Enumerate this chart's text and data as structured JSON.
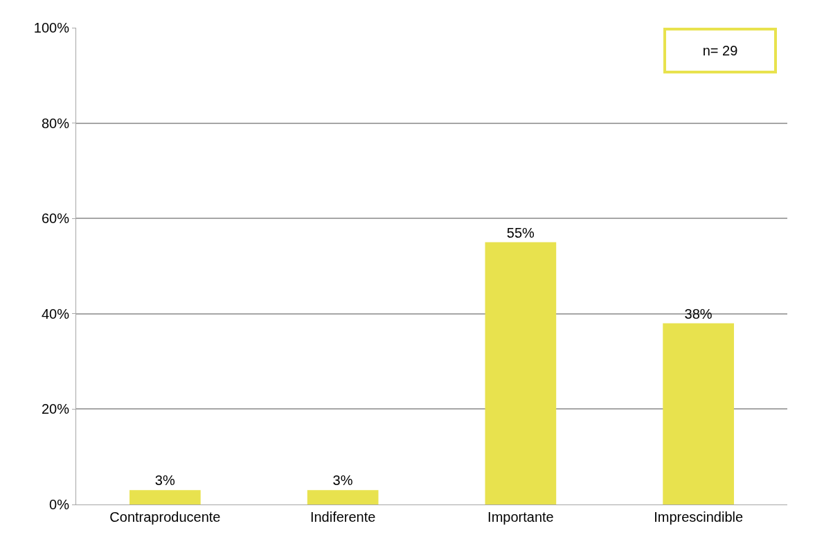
{
  "chart_data": {
    "type": "bar",
    "categories": [
      "Contraproducente",
      "Indiferente",
      "Importante",
      "Imprescindible"
    ],
    "values": [
      3,
      3,
      55,
      38
    ],
    "color": "#e8e24e",
    "value_labels": [
      "3%",
      "3%",
      "55%",
      "38%"
    ],
    "ylim": [
      0,
      100
    ],
    "yticks": [
      {
        "value": 0,
        "label": "0%"
      },
      {
        "value": 20,
        "label": "20%"
      },
      {
        "value": 40,
        "label": "40%"
      },
      {
        "value": 60,
        "label": "60%"
      },
      {
        "value": 80,
        "label": "80%"
      },
      {
        "value": 100,
        "label": "100%"
      }
    ],
    "grid": "y",
    "annotations": [
      "n= 29"
    ]
  }
}
